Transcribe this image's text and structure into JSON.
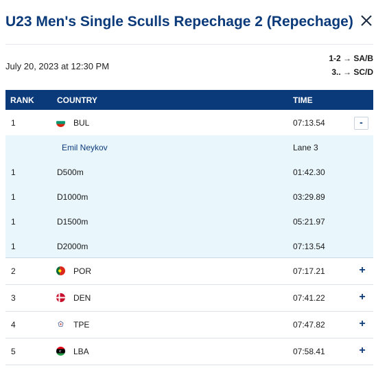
{
  "header": {
    "title": "U23 Men's Single Sculls Repechage 2 (Repechage)",
    "date": "July 20, 2023 at 12:30 PM",
    "progression": [
      "1-2 → SA/B",
      "3.. → SC/D"
    ]
  },
  "table": {
    "columns": {
      "rank": "RANK",
      "country": "COUNTRY",
      "time": "TIME"
    },
    "rows": [
      {
        "rank": "1",
        "country": "BUL",
        "time": "07:13.54",
        "toggle": "-"
      },
      {
        "rank": "2",
        "country": "POR",
        "time": "07:17.21",
        "toggle": "+"
      },
      {
        "rank": "3",
        "country": "DEN",
        "time": "07:41.22",
        "toggle": "+"
      },
      {
        "rank": "4",
        "country": "TPE",
        "time": "07:47.82",
        "toggle": "+"
      },
      {
        "rank": "5",
        "country": "LBA",
        "time": "07:58.41",
        "toggle": "+"
      }
    ],
    "detail": {
      "athlete": "Emil Neykov",
      "lane": "Lane 3",
      "splits": [
        {
          "rank": "1",
          "distance": "D500m",
          "time": "01:42.30"
        },
        {
          "rank": "1",
          "distance": "D1000m",
          "time": "03:29.89"
        },
        {
          "rank": "1",
          "distance": "D1500m",
          "time": "05:21.97"
        },
        {
          "rank": "1",
          "distance": "D2000m",
          "time": "07:13.54"
        }
      ]
    }
  },
  "colors": {
    "primary": "#0b3a7a",
    "detail_bg": "#e9f6fc"
  },
  "icons": {
    "close": "close-icon"
  }
}
